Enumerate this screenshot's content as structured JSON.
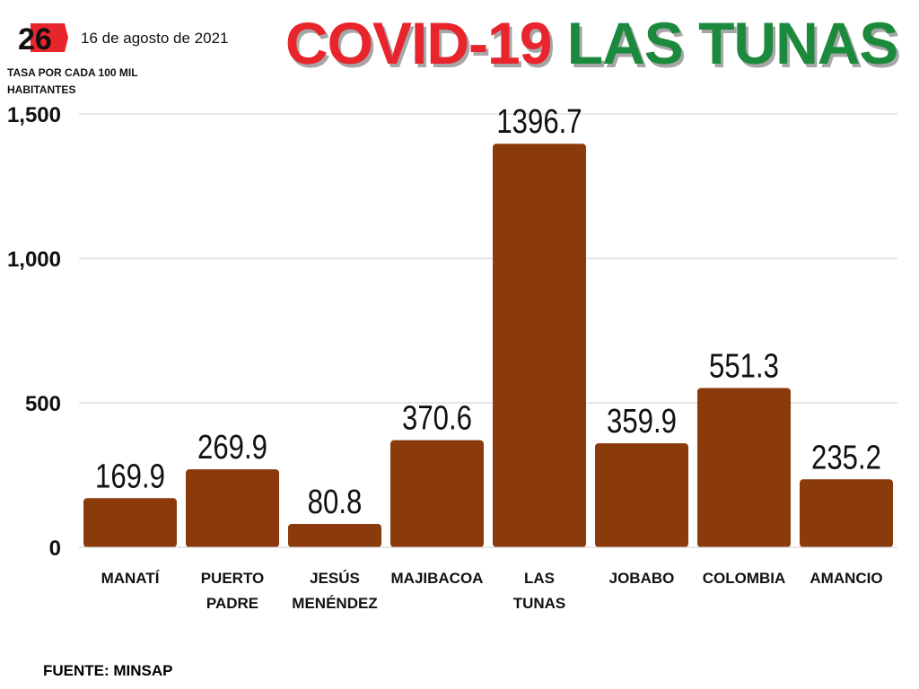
{
  "header": {
    "date": "16 de agosto de 2021",
    "subtitle": "TASA POR CADA 100 MIL HABITANTES",
    "title_part1": "COVID-19",
    "title_part2": "LAS TUNAS",
    "logo_text": "26"
  },
  "footer": {
    "source": "FUENTE: MINSAP"
  },
  "colors": {
    "bar": "#8b3a0c",
    "title_red": "#e8242c",
    "title_green": "#1b8a3c",
    "logo_red": "#e8242c"
  },
  "chart_data": {
    "type": "bar",
    "categories": [
      [
        "MANATÍ"
      ],
      [
        "PUERTO",
        "PADRE"
      ],
      [
        "JESÚS",
        "MENÉNDEZ"
      ],
      [
        "MAJIBACOA"
      ],
      [
        "LAS",
        "TUNAS"
      ],
      [
        "JOBABO"
      ],
      [
        "COLOMBIA"
      ],
      [
        "AMANCIO"
      ]
    ],
    "values": [
      169.9,
      269.9,
      80.8,
      370.6,
      1396.7,
      359.9,
      551.3,
      235.2
    ],
    "value_labels": [
      "169.9",
      "269.9",
      "80.8",
      "370.6",
      "1396.7",
      "359.9",
      "551.3",
      "235.2"
    ],
    "yticks": [
      0,
      500,
      1000,
      1500
    ],
    "ytick_labels": [
      "0",
      "500",
      "1,000",
      "1,500"
    ],
    "ylim": [
      0,
      1500
    ],
    "grid": true
  }
}
